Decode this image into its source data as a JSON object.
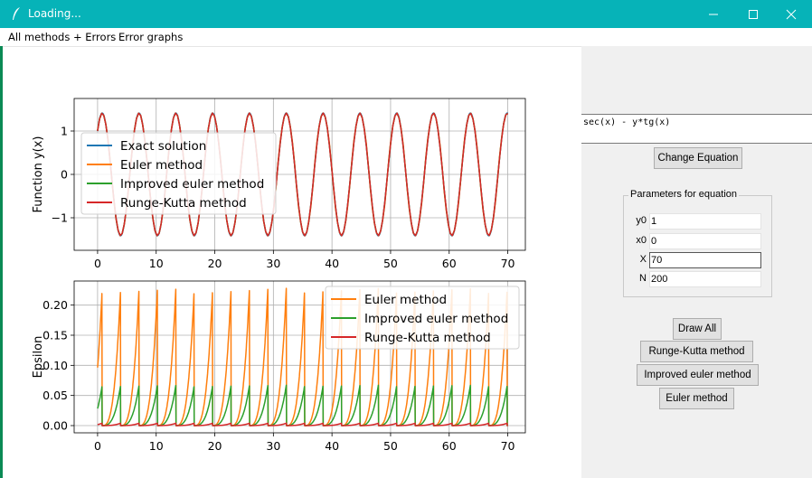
{
  "window": {
    "title": "Loading..."
  },
  "menu": {
    "items": [
      "All methods + Errors",
      "Error graphs"
    ]
  },
  "colors": {
    "exact": "#1f77b4",
    "euler": "#ff7f0e",
    "improved": "#2ca02c",
    "rk": "#d62728",
    "titlebar": "#06b3b8"
  },
  "equation": {
    "text": "sec(x) - y*tg(x)",
    "change_button": "Change Equation"
  },
  "params": {
    "group_label": "Parameters for equation",
    "fields": [
      {
        "label": "y0",
        "value": "1"
      },
      {
        "label": "x0",
        "value": "0"
      },
      {
        "label": "X",
        "value": "70"
      },
      {
        "label": "N",
        "value": "200"
      }
    ]
  },
  "buttons": {
    "draw_all": "Draw All",
    "runge_kutta": "Runge-Kutta method",
    "improved_euler": "Improved euler method",
    "euler": "Euler method"
  },
  "chart_data": [
    {
      "type": "line",
      "ylabel": "Function y(x)",
      "xlim": [
        -4,
        73
      ],
      "ylim": [
        -1.75,
        1.75
      ],
      "xticks": [
        0,
        10,
        20,
        30,
        40,
        50,
        60,
        70
      ],
      "yticks": [
        1,
        0,
        -1
      ],
      "ytick_labels": [
        "1",
        "0",
        "−1"
      ],
      "grid": true,
      "legend_position": "upper-left",
      "series": [
        {
          "name": "Exact solution",
          "key": "exact",
          "color": "#1f77b4",
          "formula": "sin(x) + cos(x)",
          "amplitude": 1.414
        },
        {
          "name": "Euler method",
          "key": "euler",
          "color": "#ff7f0e",
          "peak_amplitude": 1.62
        },
        {
          "name": "Improved euler method",
          "key": "improved",
          "color": "#2ca02c",
          "peak_amplitude": 1.45
        },
        {
          "name": "Runge-Kutta method",
          "key": "rk",
          "color": "#d62728",
          "peak_amplitude": 1.42
        }
      ]
    },
    {
      "type": "line",
      "ylabel": "Epsilon",
      "xlim": [
        -4,
        73
      ],
      "ylim": [
        -0.012,
        0.24
      ],
      "xticks": [
        0,
        10,
        20,
        30,
        40,
        50,
        60,
        70
      ],
      "yticks": [
        0.0,
        0.05,
        0.1,
        0.15,
        0.2
      ],
      "ytick_labels": [
        "0.00",
        "0.05",
        "0.10",
        "0.15",
        "0.20"
      ],
      "grid": true,
      "legend_position": "upper-right",
      "period": 3.14159,
      "series": [
        {
          "name": "Euler method",
          "key": "euler",
          "color": "#ff7f0e",
          "peak": 0.228
        },
        {
          "name": "Improved euler method",
          "key": "improved",
          "color": "#2ca02c",
          "peak": 0.067
        },
        {
          "name": "Runge-Kutta method",
          "key": "rk",
          "color": "#d62728",
          "peak": 0.004
        }
      ]
    }
  ]
}
